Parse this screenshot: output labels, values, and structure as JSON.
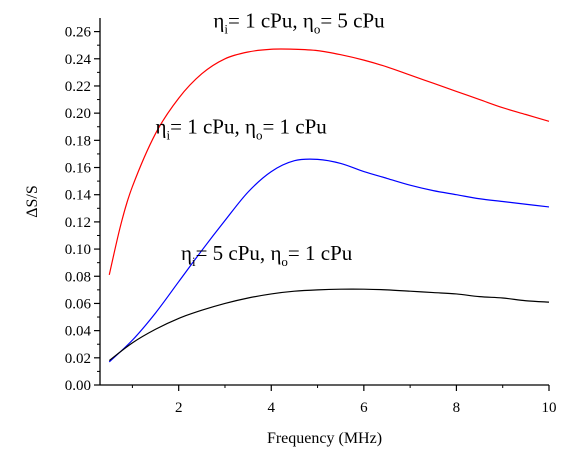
{
  "chart_data": {
    "type": "line",
    "xlabel": "Frequency (MHz)",
    "ylabel": "ΔS/S",
    "xlim": [
      0.3,
      10
    ],
    "ylim": [
      0,
      0.27
    ],
    "xticks": [
      2,
      4,
      6,
      8,
      10
    ],
    "yticks": [
      0.0,
      0.02,
      0.04,
      0.06,
      0.08,
      0.1,
      0.12,
      0.14,
      0.16,
      0.18,
      0.2,
      0.22,
      0.24,
      0.26
    ],
    "ytick_labels": [
      "0.00",
      "0.02",
      "0.04",
      "0.06",
      "0.08",
      "0.10",
      "0.12",
      "0.14",
      "0.16",
      "0.18",
      "0.20",
      "0.22",
      "0.24",
      "0.26"
    ],
    "xtick_labels": [
      "2",
      "4",
      "6",
      "8",
      "10"
    ],
    "series": [
      {
        "color": "#ff0000",
        "x": [
          0.5,
          0.75,
          1.0,
          1.5,
          2.0,
          2.5,
          3.0,
          3.5,
          4.0,
          4.5,
          5.0,
          5.5,
          6.0,
          6.5,
          7.0,
          7.5,
          8.0,
          8.5,
          9.0,
          9.5,
          10.0
        ],
        "y": [
          0.081,
          0.118,
          0.146,
          0.185,
          0.211,
          0.229,
          0.24,
          0.245,
          0.247,
          0.247,
          0.246,
          0.243,
          0.239,
          0.234,
          0.228,
          0.222,
          0.216,
          0.21,
          0.204,
          0.199,
          0.194
        ]
      },
      {
        "color": "#0000ff",
        "x": [
          0.5,
          1.0,
          1.5,
          2.0,
          2.5,
          3.0,
          3.5,
          4.0,
          4.5,
          5.0,
          5.5,
          6.0,
          6.5,
          7.0,
          7.5,
          8.0,
          8.5,
          9.0,
          9.5,
          10.0
        ],
        "y": [
          0.017,
          0.033,
          0.053,
          0.076,
          0.099,
          0.121,
          0.142,
          0.157,
          0.165,
          0.166,
          0.163,
          0.157,
          0.152,
          0.147,
          0.143,
          0.14,
          0.137,
          0.135,
          0.133,
          0.131
        ]
      },
      {
        "color": "#000000",
        "x": [
          0.5,
          1.0,
          1.5,
          2.0,
          2.5,
          3.0,
          3.5,
          4.0,
          4.5,
          5.0,
          5.5,
          6.0,
          6.5,
          7.0,
          7.5,
          8.0,
          8.5,
          9.0,
          9.5,
          10.0
        ],
        "y": [
          0.018,
          0.031,
          0.041,
          0.049,
          0.055,
          0.06,
          0.064,
          0.067,
          0.069,
          0.07,
          0.0705,
          0.0705,
          0.07,
          0.069,
          0.068,
          0.067,
          0.065,
          0.064,
          0.062,
          0.061
        ]
      }
    ],
    "annotations": [
      {
        "eta_symbol": "η",
        "i_sub": "i",
        "i_text": "= 1 cPu, ",
        "o_sub": "o",
        "o_text": "= 5 cPu",
        "anchor_x": 4.6,
        "anchor_y": 0.263
      },
      {
        "eta_symbol": "η",
        "i_sub": "i",
        "i_text": "= 1 cPu, ",
        "o_sub": "o",
        "o_text": "= 1 cPu",
        "anchor_x": 3.35,
        "anchor_y": 0.185
      },
      {
        "eta_symbol": "η",
        "i_sub": "i",
        "i_text": "= 5 cPu, ",
        "o_sub": "o",
        "o_text": "= 1 cPu",
        "anchor_x": 3.9,
        "anchor_y": 0.092
      }
    ]
  }
}
